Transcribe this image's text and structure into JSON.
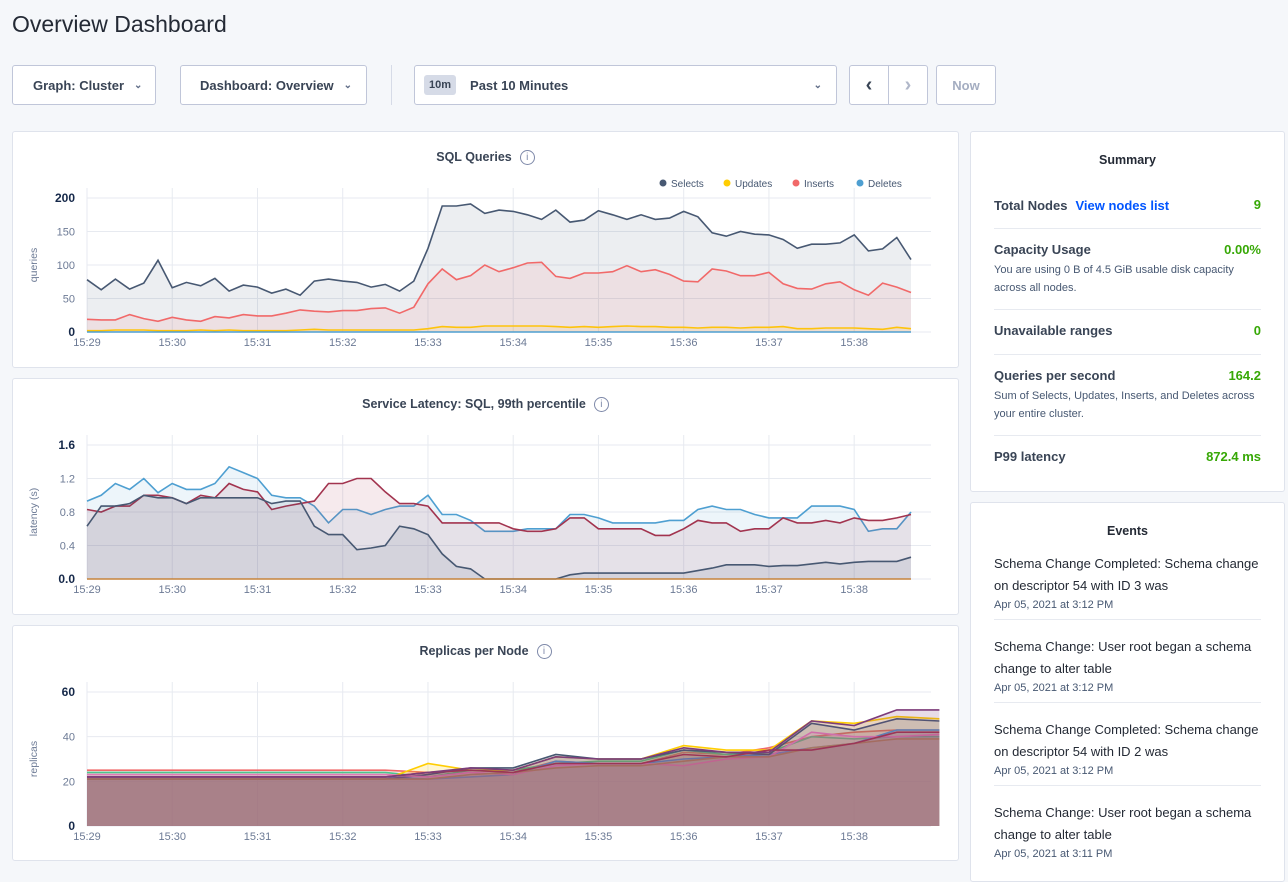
{
  "page": {
    "title": "Overview Dashboard"
  },
  "toolbar": {
    "graph_label": "Graph: Cluster",
    "dashboard_label": "Dashboard: Overview",
    "time_badge": "10m",
    "time_range": "Past 10 Minutes",
    "prev_icon": "chevron-left",
    "next_icon": "chevron-right",
    "now_label": "Now"
  },
  "summary": {
    "title": "Summary",
    "total_nodes": {
      "label": "Total Nodes",
      "link": "View nodes list",
      "value": "9"
    },
    "capacity": {
      "label": "Capacity Usage",
      "value": "0.00%",
      "desc": "You are using 0 B of 4.5 GiB usable disk capacity across all nodes."
    },
    "unavailable": {
      "label": "Unavailable ranges",
      "value": "0"
    },
    "qps": {
      "label": "Queries per second",
      "value": "164.2",
      "desc": "Sum of Selects, Updates, Inserts, and Deletes across your entire cluster."
    },
    "p99": {
      "label": "P99 latency",
      "value": "872.4 ms"
    },
    "value_color": "#37a806"
  },
  "events": {
    "title": "Events",
    "items": [
      {
        "text": "Schema Change Completed: Schema change on descriptor 54 with ID 3 was",
        "time": "Apr 05, 2021 at 3:12 PM"
      },
      {
        "text": "Schema Change: User root began a schema change to alter table",
        "time": "Apr 05, 2021 at 3:12 PM"
      },
      {
        "text": "Schema Change Completed: Schema change on descriptor 54 with ID 2 was",
        "time": "Apr 05, 2021 at 3:12 PM"
      },
      {
        "text": "Schema Change: User root began a schema change to alter table",
        "time": "Apr 05, 2021 at 3:11 PM"
      }
    ]
  },
  "chart_data": [
    {
      "type": "area",
      "title": "SQL Queries",
      "ylabel": "queries",
      "ylim": [
        0,
        200
      ],
      "yticks": [
        "0",
        "50",
        "100",
        "150",
        "200"
      ],
      "xticks": [
        "15:29",
        "15:30",
        "15:31",
        "15:32",
        "15:33",
        "15:34",
        "15:35",
        "15:36",
        "15:37",
        "15:38"
      ],
      "xlim": [
        "15:29:00",
        "15:38:40"
      ],
      "x_interval_seconds": 10,
      "grid": true,
      "legend": "top-right",
      "series": [
        {
          "name": "Selects",
          "color": "#475872",
          "values": [
            78,
            63,
            79,
            64,
            73,
            107,
            66,
            74,
            69,
            80,
            61,
            70,
            67,
            58,
            64,
            55,
            76,
            79,
            76,
            74,
            67,
            71,
            61,
            76,
            125,
            188,
            188,
            191,
            177,
            182,
            180,
            175,
            168,
            182,
            164,
            167,
            181,
            175,
            168,
            175,
            168,
            170,
            180,
            172,
            148,
            143,
            150,
            146,
            145,
            138,
            125,
            131,
            131,
            133,
            145,
            121,
            124,
            141,
            108
          ]
        },
        {
          "name": "Updates",
          "color": "#ffcd02",
          "values": [
            2,
            2,
            3,
            3,
            3,
            2,
            2,
            2,
            3,
            2,
            3,
            2,
            2,
            2,
            2,
            3,
            4,
            3,
            3,
            3,
            3,
            3,
            3,
            3,
            5,
            8,
            7,
            7,
            9,
            9,
            9,
            9,
            9,
            8,
            7,
            8,
            7,
            8,
            9,
            8,
            8,
            7,
            7,
            6,
            7,
            7,
            6,
            7,
            7,
            8,
            5,
            5,
            6,
            6,
            6,
            5,
            4,
            7,
            5
          ]
        },
        {
          "name": "Inserts",
          "color": "#f16969",
          "values": [
            19,
            18,
            18,
            26,
            20,
            16,
            22,
            18,
            16,
            23,
            21,
            26,
            24,
            24,
            28,
            33,
            31,
            30,
            32,
            32,
            35,
            36,
            28,
            37,
            72,
            94,
            78,
            84,
            100,
            90,
            96,
            103,
            104,
            83,
            80,
            88,
            88,
            90,
            99,
            90,
            93,
            86,
            76,
            75,
            94,
            91,
            84,
            84,
            89,
            72,
            65,
            64,
            72,
            75,
            63,
            55,
            73,
            67,
            59
          ]
        },
        {
          "name": "Deletes",
          "color": "#4e9fd1",
          "values": [
            0,
            0,
            0,
            0,
            0,
            0,
            0,
            0,
            0,
            0,
            0,
            0,
            0,
            0,
            0,
            0,
            0,
            0,
            0,
            0,
            0,
            0,
            0,
            0,
            0,
            0,
            0,
            0,
            0,
            0,
            0,
            0,
            0,
            0,
            0,
            0,
            0,
            0,
            0,
            0,
            0,
            0,
            0,
            0,
            0,
            0,
            0,
            0,
            0,
            0,
            0,
            0,
            0,
            0,
            0,
            0,
            0,
            0,
            0
          ]
        }
      ]
    },
    {
      "type": "area",
      "title": "Service Latency: SQL, 99th percentile",
      "ylabel": "latency (s)",
      "ylim": [
        0,
        1.6
      ],
      "yticks": [
        "0.0",
        "0.4",
        "0.8",
        "1.2",
        "1.6"
      ],
      "xticks": [
        "15:29",
        "15:30",
        "15:31",
        "15:32",
        "15:33",
        "15:34",
        "15:35",
        "15:36",
        "15:37",
        "15:38"
      ],
      "xlim": [
        "15:29:00",
        "15:38:40"
      ],
      "x_interval_seconds": 10,
      "grid": true,
      "series": [
        {
          "color": "#4e9fd1",
          "values": [
            0.93,
            1.0,
            1.14,
            1.07,
            1.2,
            1.03,
            1.14,
            1.07,
            1.07,
            1.14,
            1.34,
            1.27,
            1.2,
            1.0,
            0.97,
            0.97,
            0.87,
            0.67,
            0.83,
            0.83,
            0.77,
            0.83,
            0.87,
            0.87,
            1.0,
            0.77,
            0.77,
            0.7,
            0.57,
            0.57,
            0.57,
            0.6,
            0.6,
            0.6,
            0.77,
            0.77,
            0.73,
            0.67,
            0.67,
            0.67,
            0.67,
            0.7,
            0.7,
            0.83,
            0.87,
            0.83,
            0.83,
            0.77,
            0.73,
            0.73,
            0.73,
            0.87,
            0.87,
            0.87,
            0.83,
            0.57,
            0.6,
            0.6,
            0.8
          ]
        },
        {
          "color": "#a2344f",
          "values": [
            0.83,
            0.8,
            0.87,
            0.87,
            1.0,
            1.0,
            0.97,
            0.9,
            1.0,
            0.97,
            1.14,
            1.07,
            1.04,
            0.83,
            0.87,
            0.9,
            0.93,
            1.14,
            1.14,
            1.2,
            1.2,
            1.04,
            0.9,
            0.9,
            0.87,
            0.67,
            0.67,
            0.67,
            0.67,
            0.67,
            0.6,
            0.57,
            0.57,
            0.6,
            0.73,
            0.73,
            0.6,
            0.6,
            0.6,
            0.6,
            0.52,
            0.52,
            0.6,
            0.7,
            0.67,
            0.67,
            0.57,
            0.6,
            0.6,
            0.73,
            0.67,
            0.67,
            0.7,
            0.67,
            0.73,
            0.7,
            0.7,
            0.73,
            0.77
          ]
        },
        {
          "color": "#475872",
          "values": [
            0.63,
            0.87,
            0.87,
            0.9,
            1.0,
            0.97,
            0.97,
            0.9,
            0.97,
            0.97,
            0.97,
            0.97,
            0.97,
            0.9,
            0.93,
            0.93,
            0.63,
            0.53,
            0.53,
            0.35,
            0.37,
            0.4,
            0.63,
            0.6,
            0.53,
            0.3,
            0.15,
            0.12,
            0,
            0,
            0,
            0,
            0,
            0,
            0.05,
            0.07,
            0.07,
            0.07,
            0.07,
            0.07,
            0.07,
            0.07,
            0.07,
            0.1,
            0.13,
            0.17,
            0.17,
            0.17,
            0.15,
            0.16,
            0.16,
            0.18,
            0.2,
            0.18,
            0.2,
            0.21,
            0.21,
            0.21,
            0.26
          ]
        },
        {
          "color": "#c6843c",
          "values": [
            0,
            0,
            0,
            0,
            0,
            0,
            0,
            0,
            0,
            0,
            0,
            0,
            0,
            0,
            0,
            0,
            0,
            0,
            0,
            0,
            0,
            0,
            0,
            0,
            0,
            0,
            0,
            0,
            0,
            0,
            0,
            0,
            0,
            0,
            0,
            0,
            0,
            0,
            0,
            0,
            0,
            0,
            0,
            0,
            0,
            0,
            0,
            0,
            0,
            0,
            0,
            0,
            0,
            0,
            0,
            0,
            0,
            0,
            0
          ]
        }
      ]
    },
    {
      "type": "area",
      "title": "Replicas per Node",
      "ylabel": "replicas",
      "ylim": [
        0,
        60
      ],
      "yticks": [
        "0",
        "20",
        "40",
        "60"
      ],
      "xticks": [
        "15:29",
        "15:30",
        "15:31",
        "15:32",
        "15:33",
        "15:34",
        "15:35",
        "15:36",
        "15:37",
        "15:38"
      ],
      "xlim": [
        "15:29:00",
        "15:38:40"
      ],
      "x_interval_seconds": 30,
      "grid": true,
      "series": [
        {
          "color": "#f16969",
          "values": [
            25,
            25,
            25,
            25,
            25,
            25,
            25,
            25,
            24,
            25,
            24,
            29,
            28,
            28,
            33,
            32,
            35,
            40,
            42,
            43,
            43
          ]
        },
        {
          "color": "#4dc48d",
          "values": [
            24,
            24,
            24,
            24,
            24,
            24,
            24,
            24,
            22,
            25,
            25,
            28,
            29,
            29,
            34,
            32,
            33,
            40,
            39,
            40,
            40
          ]
        },
        {
          "color": "#ffcd02",
          "values": [
            21,
            21,
            21,
            21,
            21,
            21,
            21,
            21,
            28,
            25,
            25,
            31,
            30,
            30,
            36,
            34,
            34,
            47,
            46,
            49,
            48
          ]
        },
        {
          "color": "#5a9bd5",
          "values": [
            22,
            22,
            22,
            22,
            22,
            22,
            22,
            22,
            21,
            22,
            23,
            29,
            28,
            28,
            30,
            31,
            32,
            35,
            37,
            43,
            43
          ]
        },
        {
          "color": "#475872",
          "values": [
            21,
            21,
            21,
            21,
            21,
            21,
            21,
            21,
            23,
            26,
            26,
            32,
            30,
            30,
            34,
            33,
            32,
            46,
            43,
            48,
            47
          ]
        },
        {
          "color": "#e17ab5",
          "values": [
            23,
            23,
            23,
            23,
            23,
            23,
            23,
            23,
            22,
            24,
            23,
            27,
            28,
            28,
            27,
            30,
            31,
            42,
            40,
            40,
            41
          ]
        },
        {
          "color": "#b0875f",
          "values": [
            21,
            21,
            21,
            21,
            21,
            21,
            21,
            21,
            21,
            23,
            24,
            26,
            27,
            27,
            29,
            31,
            31,
            35,
            37,
            39,
            39
          ]
        },
        {
          "color": "#a2344f",
          "values": [
            22,
            22,
            22,
            22,
            22,
            22,
            22,
            22,
            24,
            25,
            24,
            28,
            28,
            28,
            32,
            31,
            34,
            34,
            37,
            42,
            42
          ]
        },
        {
          "color": "#7d3c7a",
          "values": [
            22,
            22,
            22,
            22,
            22,
            22,
            22,
            22,
            24,
            26,
            25,
            31,
            30,
            30,
            35,
            33,
            33,
            47,
            45,
            52,
            52
          ]
        }
      ]
    }
  ]
}
